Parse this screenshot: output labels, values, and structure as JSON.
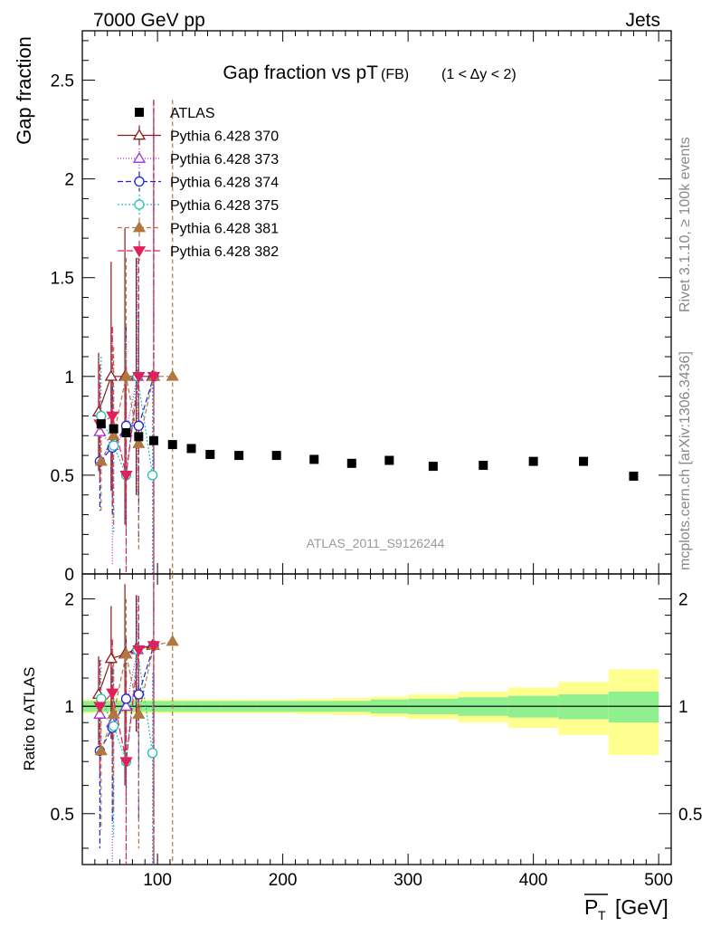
{
  "header": {
    "left": "7000 GeV pp",
    "right": "Jets"
  },
  "side_labels": {
    "rivet": "Rivet 3.1.10, ≥ 100k events",
    "mcplots": "mcplots.cern.ch [arXiv:1306.3436]"
  },
  "colors": {
    "ATLAS": "#000000",
    "Pythia 6.428 370": "#8b1a1a",
    "Pythia 6.428 373": "#9b30d0",
    "Pythia 6.428 374": "#2020d0",
    "Pythia 6.428 375": "#20c0b0",
    "Pythia 6.428 381": "#b07840",
    "Pythia 6.428 382": "#e0205a",
    "band_inner": "#90f090",
    "band_outer": "#ffff90"
  },
  "chart_data": [
    {
      "type": "scatter",
      "title_main": "Gap fraction vs pT",
      "title_sub": "(FB)",
      "title_range": "(1 < Δy < 2)",
      "ylabel": "Gap fraction",
      "xlabel": "P_T [GeV]",
      "watermark": "ATLAS_2011_S9126244",
      "xlim": [
        40,
        510
      ],
      "ylim": [
        0,
        2.75
      ],
      "yticks": [
        "0.5",
        "1",
        "1.5",
        "2",
        "2.5"
      ],
      "legend_position": "top-left",
      "series": [
        {
          "name": "ATLAS",
          "marker": "square",
          "x": [
            55,
            65,
            75,
            85,
            97,
            112,
            127,
            142,
            165,
            195,
            225,
            255,
            285,
            320,
            360,
            400,
            440,
            480
          ],
          "y": [
            0.76,
            0.735,
            0.715,
            0.695,
            0.675,
            0.655,
            0.635,
            0.605,
            0.6,
            0.6,
            0.58,
            0.56,
            0.575,
            0.545,
            0.55,
            0.57,
            0.57,
            0.495
          ]
        },
        {
          "name": "Pythia 6.428 370",
          "marker": "triangle-up-open",
          "dash": "",
          "x": [
            53,
            63,
            74,
            83,
            96
          ],
          "y": [
            0.82,
            1.0,
            1.0,
            1.0,
            1.0
          ],
          "err": [
            0.3,
            0.58,
            0.75,
            0.6,
            0.0
          ]
        },
        {
          "name": "Pythia 6.428 373",
          "marker": "triangle-up-open",
          "dash": "1,2",
          "x": [
            54,
            64,
            75,
            84,
            97
          ],
          "y": [
            0.72,
            0.65,
            0.72,
            1.0,
            1.0
          ],
          "err": [
            0.25,
            0.6,
            0.5,
            0.6,
            1.4
          ]
        },
        {
          "name": "Pythia 6.428 374",
          "marker": "circle-open",
          "dash": "6,3",
          "x": [
            54,
            64,
            75,
            85,
            97
          ],
          "y": [
            0.57,
            0.64,
            0.75,
            0.75,
            1.0
          ],
          "err": [
            0.25,
            0.35,
            0.5,
            0.58,
            1.4
          ]
        },
        {
          "name": "Pythia 6.428 375",
          "marker": "circle-open",
          "dash": "2,2",
          "x": [
            55,
            65,
            75,
            84,
            96
          ],
          "y": [
            0.8,
            0.65,
            0.5,
            1.0,
            0.5
          ],
          "err": [
            0.3,
            0.45,
            0.6,
            0.6,
            0.5
          ]
        },
        {
          "name": "Pythia 6.428 381",
          "marker": "triangle-up-filled",
          "dash": "5,3",
          "x": [
            55,
            65,
            75,
            85,
            97,
            112
          ],
          "y": [
            0.57,
            0.7,
            1.0,
            0.66,
            1.0,
            1.0
          ],
          "err": [
            0.25,
            0.45,
            0.6,
            0.55,
            1.4,
            1.4
          ]
        },
        {
          "name": "Pythia 6.428 382",
          "marker": "triangle-down-filled",
          "dash": "7,3",
          "x": [
            54,
            64,
            75,
            85,
            97
          ],
          "y": [
            0.76,
            0.8,
            0.5,
            1.0,
            1.0
          ],
          "err": [
            0.3,
            0.45,
            0.55,
            0.6,
            1.4
          ]
        }
      ]
    },
    {
      "type": "scatter",
      "ylabel": "Ratio to ATLAS",
      "xlim": [
        40,
        510
      ],
      "ylim": [
        0.36,
        2.35
      ],
      "log_y": true,
      "yticks": [
        "0.5",
        "1",
        "2"
      ],
      "xticks": [
        "100",
        "200",
        "300",
        "400",
        "500"
      ],
      "band_x_edges": [
        40,
        60,
        70,
        80,
        90,
        105,
        120,
        135,
        150,
        180,
        210,
        240,
        270,
        300,
        340,
        380,
        420,
        460,
        500
      ],
      "band_inner": [
        0.035,
        0.035,
        0.035,
        0.035,
        0.035,
        0.035,
        0.035,
        0.035,
        0.035,
        0.035,
        0.035,
        0.035,
        0.045,
        0.05,
        0.06,
        0.07,
        0.08,
        0.1
      ],
      "band_outer": [
        0.045,
        0.045,
        0.045,
        0.045,
        0.045,
        0.045,
        0.045,
        0.045,
        0.045,
        0.045,
        0.05,
        0.055,
        0.065,
        0.08,
        0.1,
        0.13,
        0.17,
        0.27
      ],
      "series": [
        {
          "name": "Pythia 6.428 370",
          "x": [
            53,
            63,
            74,
            83,
            96
          ],
          "y": [
            1.08,
            1.36,
            1.4,
            1.45,
            1.48
          ],
          "err": [
            0.3,
            0.55,
            0.8,
            0.6,
            0.0
          ]
        },
        {
          "name": "Pythia 6.428 373",
          "x": [
            54,
            64,
            75,
            84,
            97
          ],
          "y": [
            0.95,
            0.9,
            1.0,
            1.44,
            1.48
          ],
          "err": [
            0.35,
            0.6,
            0.5,
            0.6,
            1.2
          ]
        },
        {
          "name": "Pythia 6.428 374",
          "x": [
            54,
            64,
            75,
            85,
            97
          ],
          "y": [
            0.75,
            0.87,
            1.05,
            1.08,
            1.48
          ],
          "err": [
            0.35,
            0.4,
            0.5,
            0.6,
            1.2
          ]
        },
        {
          "name": "Pythia 6.428 375",
          "x": [
            55,
            65,
            75,
            84,
            96
          ],
          "y": [
            1.05,
            0.88,
            0.7,
            1.44,
            0.74
          ],
          "err": [
            0.3,
            0.45,
            0.6,
            0.6,
            0.5
          ]
        },
        {
          "name": "Pythia 6.428 381",
          "x": [
            55,
            65,
            75,
            85,
            97,
            112
          ],
          "y": [
            0.75,
            0.95,
            1.4,
            0.95,
            1.48,
            1.52
          ],
          "err": [
            0.3,
            0.45,
            0.6,
            0.55,
            1.2,
            1.2
          ]
        },
        {
          "name": "Pythia 6.428 382",
          "x": [
            54,
            64,
            75,
            85,
            97
          ],
          "y": [
            1.0,
            1.09,
            0.7,
            1.44,
            1.48
          ],
          "err": [
            0.35,
            0.45,
            0.55,
            0.6,
            1.2
          ]
        }
      ]
    }
  ]
}
